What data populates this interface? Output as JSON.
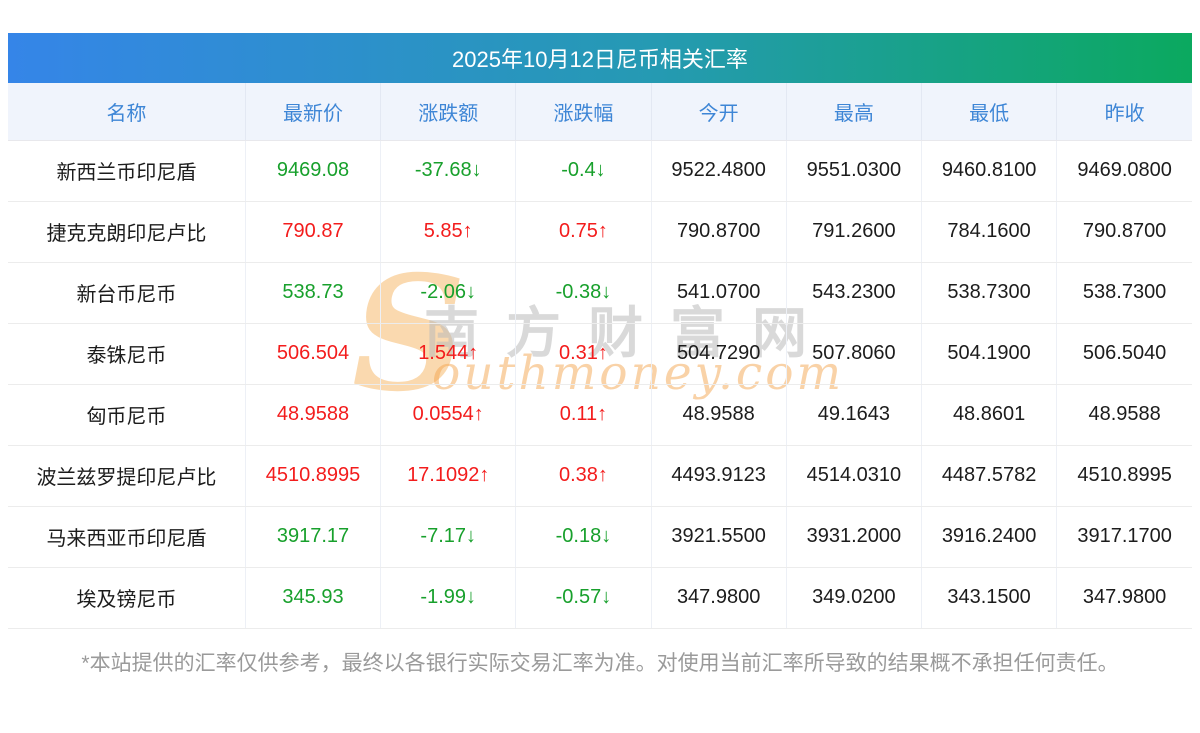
{
  "title": "2025年10月12日尼币相关汇率",
  "colors": {
    "title_gradient_left": "#3585e8",
    "title_gradient_right": "#0ba95f",
    "header_bg": "#f0f4fc",
    "header_text": "#3e86d6",
    "up_red": "#f31c1c",
    "down_green": "#18a02c"
  },
  "table": {
    "columns": [
      "名称",
      "最新价",
      "涨跌额",
      "涨跌幅",
      "今开",
      "最高",
      "最低",
      "昨收"
    ],
    "rows": [
      {
        "name": "新西兰币印尼盾",
        "latest": "9469.08",
        "change": "-37.68↓",
        "change_pct": "-0.4↓",
        "trend": "down",
        "open": "9522.4800",
        "high": "9551.0300",
        "low": "9460.8100",
        "prev_close": "9469.0800"
      },
      {
        "name": "捷克克朗印尼卢比",
        "latest": "790.87",
        "change": "5.85↑",
        "change_pct": "0.75↑",
        "trend": "up",
        "open": "790.8700",
        "high": "791.2600",
        "low": "784.1600",
        "prev_close": "790.8700"
      },
      {
        "name": "新台币尼币",
        "latest": "538.73",
        "change": "-2.06↓",
        "change_pct": "-0.38↓",
        "trend": "down",
        "open": "541.0700",
        "high": "543.2300",
        "low": "538.7300",
        "prev_close": "538.7300"
      },
      {
        "name": "泰铢尼币",
        "latest": "506.504",
        "change": "1.544↑",
        "change_pct": "0.31↑",
        "trend": "up",
        "open": "504.7290",
        "high": "507.8060",
        "low": "504.1900",
        "prev_close": "506.5040"
      },
      {
        "name": "匈币尼币",
        "latest": "48.9588",
        "change": "0.0554↑",
        "change_pct": "0.11↑",
        "trend": "up",
        "open": "48.9588",
        "high": "49.1643",
        "low": "48.8601",
        "prev_close": "48.9588"
      },
      {
        "name": "波兰兹罗提印尼卢比",
        "latest": "4510.8995",
        "change": "17.1092↑",
        "change_pct": "0.38↑",
        "trend": "up",
        "open": "4493.9123",
        "high": "4514.0310",
        "low": "4487.5782",
        "prev_close": "4510.8995"
      },
      {
        "name": "马来西亚币印尼盾",
        "latest": "3917.17",
        "change": "-7.17↓",
        "change_pct": "-0.18↓",
        "trend": "down",
        "open": "3921.5500",
        "high": "3931.2000",
        "low": "3916.2400",
        "prev_close": "3917.1700"
      },
      {
        "name": "埃及镑尼币",
        "latest": "345.93",
        "change": "-1.99↓",
        "change_pct": "-0.57↓",
        "trend": "down",
        "open": "347.9800",
        "high": "349.0200",
        "low": "343.1500",
        "prev_close": "347.9800"
      }
    ]
  },
  "watermark": {
    "s_letter": "S",
    "cn": "南方财富网",
    "en": "outhmoney.com"
  },
  "footer": {
    "disclaimer": "*本站提供的汇率仅供参考，最终以各银行实际交易汇率为准。对使用当前汇率所导致的结果概不承担任何责任。"
  }
}
